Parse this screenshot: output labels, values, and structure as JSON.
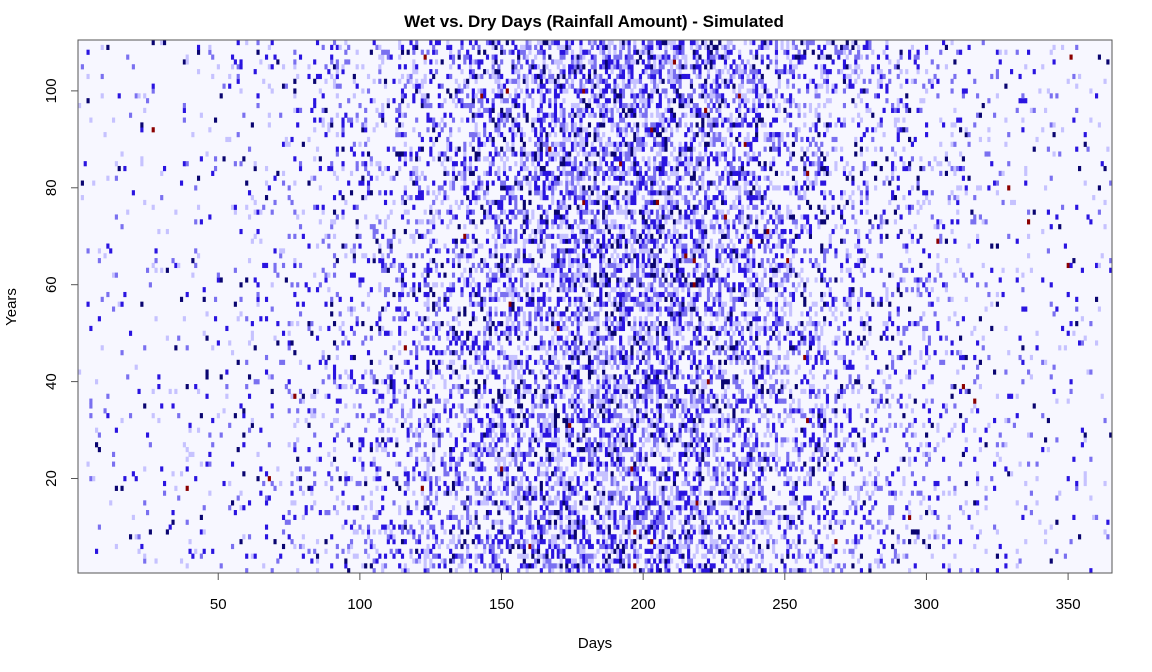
{
  "chart_data": {
    "type": "heatmap",
    "title": "Wet vs. Dry Days (Rainfall Amount) - Simulated",
    "xlabel": "Days",
    "ylabel": "Years",
    "xlim": [
      0.5,
      365.5
    ],
    "ylim": [
      0.5,
      110.5
    ],
    "x_ticks": [
      50,
      100,
      150,
      200,
      250,
      300,
      350
    ],
    "x_tick_labels": [
      "50",
      "100",
      "150",
      "200",
      "250",
      "300",
      "350"
    ],
    "y_ticks": [
      20,
      40,
      60,
      80,
      100
    ],
    "y_tick_labels": [
      "20",
      "40",
      "60",
      "80",
      "100"
    ],
    "n_days": 365,
    "n_years": 110,
    "grid": false,
    "legend": "none",
    "color_scale": {
      "dry": "#f7f7ff",
      "light": "#c6c2ff",
      "medium": "#7a70f0",
      "heavy": "#2a14e0",
      "very_heavy": "#0a0570",
      "extreme": "#8b0000"
    },
    "seasonal_pattern": {
      "peak_day": 195,
      "peak_wet_probability": 0.55,
      "base_wet_probability": 0.03,
      "spread_days": 60
    }
  }
}
